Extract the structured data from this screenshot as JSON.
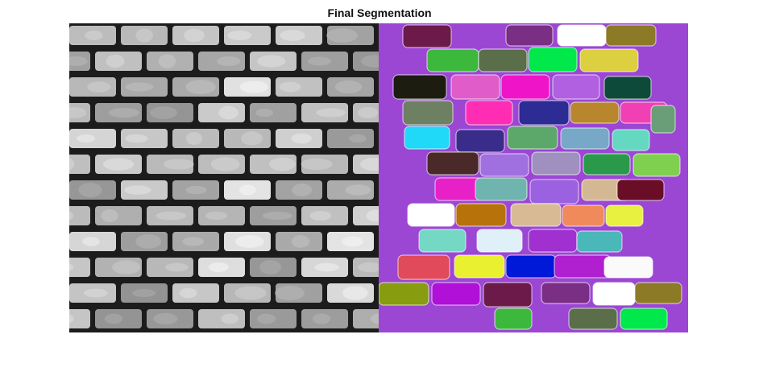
{
  "figure": {
    "title": "Final Segmentation"
  },
  "panels": {
    "left": {
      "kind": "grayscale-brick-wall-photo",
      "background_color": "#1c1c1c"
    },
    "right": {
      "kind": "colored-segmentation-label-map",
      "background_color": "#9b47d3"
    }
  },
  "segment_palette": [
    "#6b1a4a",
    "#7a2e84",
    "#ffffff",
    "#8c7a26",
    "#3cb83c",
    "#5a6e4a",
    "#00e84a",
    "#dcd040",
    "#1c1c10",
    "#e05cc8",
    "#f014c8",
    "#b060e0",
    "#0e4a3a",
    "#6e8062",
    "#ff2cb4",
    "#2c2c94",
    "#b8862c",
    "#f040b4",
    "#6a9e78",
    "#20d8f8",
    "#3a2c8a",
    "#5ca86a",
    "#78a8c8",
    "#64d8c0",
    "#4a2a28",
    "#a070e0",
    "#a090c0",
    "#2a9a4a",
    "#80d050",
    "#e820c8",
    "#70b4b0",
    "#9a62e0",
    "#d4b894",
    "#6a0e28",
    "#ffffff",
    "#b8720a",
    "#d8ba94",
    "#f08a5a",
    "#e8f040",
    "#74d8c4",
    "#e0f0f8",
    "#a030d0",
    "#4ab8b8",
    "#e04a5a",
    "#e8f030",
    "#0018d8",
    "#b020d0",
    "#fafafa",
    "#889c10",
    "#b010d8"
  ]
}
